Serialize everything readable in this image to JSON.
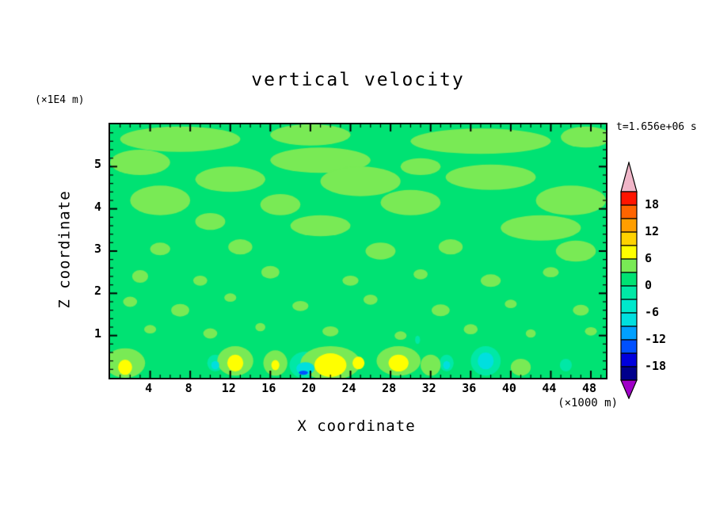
{
  "figure": {
    "title": "vertical velocity",
    "time_label": "t=1.656e+06 s",
    "y_units_label": "(×1E4 m)",
    "x_units_label": "(×1000 m)",
    "xlabel": "X coordinate",
    "ylabel": "Z coordinate"
  },
  "chart_data": {
    "type": "heatmap",
    "title": "vertical velocity",
    "xlabel": "X coordinate",
    "ylabel": "Z coordinate",
    "x_units": "(×1000 m)",
    "z_units": "(×1E4 m)",
    "time_annotation": "t=1.656e+06 s",
    "xlim": [
      0,
      49.5
    ],
    "zlim": [
      0,
      6
    ],
    "x_ticks": [
      4,
      8,
      12,
      16,
      20,
      24,
      28,
      32,
      36,
      40,
      44,
      48
    ],
    "z_ticks": [
      1,
      2,
      3,
      4,
      5
    ],
    "grid": false,
    "legend_position": "right-colorbar",
    "colorbar": {
      "tick_labels": [
        18,
        12,
        6,
        0,
        -6,
        -12,
        -18
      ],
      "over_color": "#F0B6C8",
      "under_color": "#A000C8",
      "bands": [
        {
          "min": 18,
          "max": 21,
          "color": "#FF1400"
        },
        {
          "min": 15,
          "max": 18,
          "color": "#FF6400"
        },
        {
          "min": 12,
          "max": 15,
          "color": "#FF9E00"
        },
        {
          "min": 9,
          "max": 12,
          "color": "#FFD200"
        },
        {
          "min": 6,
          "max": 9,
          "color": "#FFFF00"
        },
        {
          "min": 3,
          "max": 6,
          "color": "#79EA55"
        },
        {
          "min": 0,
          "max": 3,
          "color": "#00E273"
        },
        {
          "min": -3,
          "max": 0,
          "color": "#00E8A6"
        },
        {
          "min": -6,
          "max": -3,
          "color": "#00E8CC"
        },
        {
          "min": -9,
          "max": -6,
          "color": "#00DFDF"
        },
        {
          "min": -12,
          "max": -9,
          "color": "#00A0FF"
        },
        {
          "min": -15,
          "max": -12,
          "color": "#0050FF"
        },
        {
          "min": -18,
          "max": -15,
          "color": "#0000DC"
        },
        {
          "min": -21,
          "max": -18,
          "color": "#00008C"
        }
      ]
    },
    "field": {
      "description": "vertical velocity field; mostly near-zero (green) with weak positive streaks aloft, stronger positive (yellow) updraft cores and negative (cyan/blue) downdrafts near the surface",
      "background_value": 1,
      "features": [
        {
          "x": 7,
          "z": 5.65,
          "rx": 6,
          "rz": 0.3,
          "v": 4
        },
        {
          "x": 20,
          "z": 5.75,
          "rx": 4,
          "rz": 0.25,
          "v": 4
        },
        {
          "x": 37,
          "z": 5.6,
          "rx": 7,
          "rz": 0.3,
          "v": 4
        },
        {
          "x": 47.5,
          "z": 5.7,
          "rx": 2.5,
          "rz": 0.25,
          "v": 4
        },
        {
          "x": 3,
          "z": 5.1,
          "rx": 3,
          "rz": 0.3,
          "v": 4
        },
        {
          "x": 21,
          "z": 5.15,
          "rx": 5,
          "rz": 0.3,
          "v": 4
        },
        {
          "x": 31,
          "z": 5.0,
          "rx": 2,
          "rz": 0.2,
          "v": 4
        },
        {
          "x": 12,
          "z": 4.7,
          "rx": 3.5,
          "rz": 0.3,
          "v": 4
        },
        {
          "x": 25,
          "z": 4.65,
          "rx": 4,
          "rz": 0.35,
          "v": 4
        },
        {
          "x": 38,
          "z": 4.75,
          "rx": 4.5,
          "rz": 0.3,
          "v": 4
        },
        {
          "x": 5,
          "z": 4.2,
          "rx": 3,
          "rz": 0.35,
          "v": 4
        },
        {
          "x": 17,
          "z": 4.1,
          "rx": 2,
          "rz": 0.25,
          "v": 4
        },
        {
          "x": 30,
          "z": 4.15,
          "rx": 3,
          "rz": 0.3,
          "v": 4
        },
        {
          "x": 46,
          "z": 4.2,
          "rx": 3.5,
          "rz": 0.35,
          "v": 4
        },
        {
          "x": 10,
          "z": 3.7,
          "rx": 1.5,
          "rz": 0.2,
          "v": 4
        },
        {
          "x": 21,
          "z": 3.6,
          "rx": 3,
          "rz": 0.25,
          "v": 4
        },
        {
          "x": 43,
          "z": 3.55,
          "rx": 4,
          "rz": 0.3,
          "v": 4
        },
        {
          "x": 5,
          "z": 3.05,
          "rx": 1,
          "rz": 0.15,
          "v": 4
        },
        {
          "x": 13,
          "z": 3.1,
          "rx": 1.2,
          "rz": 0.18,
          "v": 4
        },
        {
          "x": 27,
          "z": 3.0,
          "rx": 1.5,
          "rz": 0.2,
          "v": 4
        },
        {
          "x": 34,
          "z": 3.1,
          "rx": 1.2,
          "rz": 0.18,
          "v": 4
        },
        {
          "x": 46.5,
          "z": 3.0,
          "rx": 2,
          "rz": 0.25,
          "v": 4
        },
        {
          "x": 3,
          "z": 2.4,
          "rx": 0.8,
          "rz": 0.15,
          "v": 4
        },
        {
          "x": 9,
          "z": 2.3,
          "rx": 0.7,
          "rz": 0.12,
          "v": 4
        },
        {
          "x": 16,
          "z": 2.5,
          "rx": 0.9,
          "rz": 0.15,
          "v": 4
        },
        {
          "x": 24,
          "z": 2.3,
          "rx": 0.8,
          "rz": 0.12,
          "v": 4
        },
        {
          "x": 31,
          "z": 2.45,
          "rx": 0.7,
          "rz": 0.12,
          "v": 4
        },
        {
          "x": 38,
          "z": 2.3,
          "rx": 1,
          "rz": 0.15,
          "v": 4
        },
        {
          "x": 44,
          "z": 2.5,
          "rx": 0.8,
          "rz": 0.12,
          "v": 4
        },
        {
          "x": 2,
          "z": 1.8,
          "rx": 0.7,
          "rz": 0.12,
          "v": 4
        },
        {
          "x": 7,
          "z": 1.6,
          "rx": 0.9,
          "rz": 0.15,
          "v": 4
        },
        {
          "x": 12,
          "z": 1.9,
          "rx": 0.6,
          "rz": 0.1,
          "v": 4
        },
        {
          "x": 19,
          "z": 1.7,
          "rx": 0.8,
          "rz": 0.12,
          "v": 4
        },
        {
          "x": 26,
          "z": 1.85,
          "rx": 0.7,
          "rz": 0.12,
          "v": 4
        },
        {
          "x": 33,
          "z": 1.6,
          "rx": 0.9,
          "rz": 0.14,
          "v": 4
        },
        {
          "x": 40,
          "z": 1.75,
          "rx": 0.6,
          "rz": 0.1,
          "v": 4
        },
        {
          "x": 47,
          "z": 1.6,
          "rx": 0.8,
          "rz": 0.13,
          "v": 4
        },
        {
          "x": 4,
          "z": 1.15,
          "rx": 0.6,
          "rz": 0.1,
          "v": 4
        },
        {
          "x": 10,
          "z": 1.05,
          "rx": 0.7,
          "rz": 0.12,
          "v": 4
        },
        {
          "x": 15,
          "z": 1.2,
          "rx": 0.5,
          "rz": 0.1,
          "v": 4
        },
        {
          "x": 22,
          "z": 1.1,
          "rx": 0.8,
          "rz": 0.12,
          "v": 4
        },
        {
          "x": 29,
          "z": 1.0,
          "rx": 0.6,
          "rz": 0.1,
          "v": 4
        },
        {
          "x": 36,
          "z": 1.15,
          "rx": 0.7,
          "rz": 0.12,
          "v": 4
        },
        {
          "x": 42,
          "z": 1.05,
          "rx": 0.5,
          "rz": 0.1,
          "v": 4
        },
        {
          "x": 48,
          "z": 1.1,
          "rx": 0.6,
          "rz": 0.1,
          "v": 4
        },
        {
          "x": 1.5,
          "z": 0.35,
          "rx": 2,
          "rz": 0.35,
          "v": 4
        },
        {
          "x": 12.5,
          "z": 0.4,
          "rx": 1.8,
          "rz": 0.35,
          "v": 4
        },
        {
          "x": 16.5,
          "z": 0.35,
          "rx": 1.2,
          "rz": 0.3,
          "v": 4
        },
        {
          "x": 22,
          "z": 0.35,
          "rx": 3,
          "rz": 0.4,
          "v": 4
        },
        {
          "x": 28.8,
          "z": 0.4,
          "rx": 2.2,
          "rz": 0.35,
          "v": 4
        },
        {
          "x": 32,
          "z": 0.3,
          "rx": 1,
          "rz": 0.25,
          "v": 4
        },
        {
          "x": 41,
          "z": 0.25,
          "rx": 1,
          "rz": 0.2,
          "v": 4
        },
        {
          "x": 19.5,
          "z": 0.3,
          "rx": 1.6,
          "rz": 0.32,
          "v": -1.5
        },
        {
          "x": 37.5,
          "z": 0.4,
          "rx": 1.5,
          "rz": 0.35,
          "v": -1.5
        },
        {
          "x": 10.5,
          "z": 0.35,
          "rx": 0.8,
          "rz": 0.2,
          "v": -1.5
        },
        {
          "x": 33.6,
          "z": 0.35,
          "rx": 0.7,
          "rz": 0.2,
          "v": -1.5
        },
        {
          "x": 45.5,
          "z": 0.3,
          "rx": 0.6,
          "rz": 0.15,
          "v": -1.5
        },
        {
          "x": 30.7,
          "z": 0.9,
          "rx": 0.25,
          "rz": 0.1,
          "v": -1.5
        },
        {
          "x": 1.5,
          "z": 0.25,
          "rx": 0.7,
          "rz": 0.18,
          "v": 7
        },
        {
          "x": 12.5,
          "z": 0.35,
          "rx": 0.8,
          "rz": 0.2,
          "v": 7
        },
        {
          "x": 16.5,
          "z": 0.3,
          "rx": 0.4,
          "rz": 0.12,
          "v": 7
        },
        {
          "x": 22,
          "z": 0.3,
          "rx": 1.6,
          "rz": 0.28,
          "v": 7
        },
        {
          "x": 24.8,
          "z": 0.35,
          "rx": 0.6,
          "rz": 0.15,
          "v": 7
        },
        {
          "x": 28.8,
          "z": 0.35,
          "rx": 1.0,
          "rz": 0.2,
          "v": 7
        },
        {
          "x": 19.5,
          "z": 0.22,
          "rx": 0.9,
          "rz": 0.15,
          "v": -7
        },
        {
          "x": 37.5,
          "z": 0.4,
          "rx": 0.8,
          "rz": 0.2,
          "v": -7
        },
        {
          "x": 10.5,
          "z": 0.3,
          "rx": 0.4,
          "rz": 0.1,
          "v": -7
        },
        {
          "x": 33.6,
          "z": 0.3,
          "rx": 0.35,
          "rz": 0.1,
          "v": -7
        },
        {
          "x": 19.3,
          "z": 0.12,
          "rx": 0.45,
          "rz": 0.05,
          "v": -13
        }
      ]
    }
  }
}
